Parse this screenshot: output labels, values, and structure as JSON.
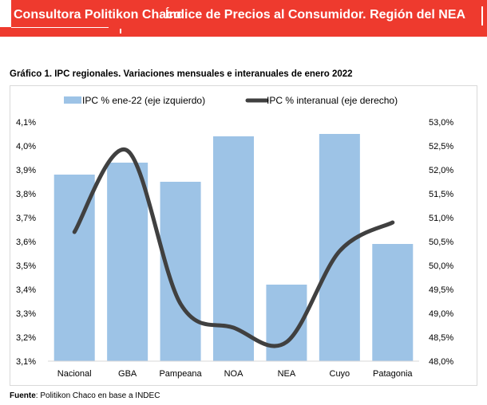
{
  "header": {
    "org": "Consultora Politikon Chaco",
    "title": "Índice de Precios al Consumidor. Región del NEA",
    "color": "#ee3a2e"
  },
  "figure_title": "Gráfico 1. IPC regionales. Variaciones mensuales e interanuales de enero 2022",
  "source": {
    "label": "Fuente",
    "text": ": Politikon Chaco en base a INDEC"
  },
  "chart_data": {
    "type": "bar+line",
    "title": "Gráfico 1. IPC regionales. Variaciones mensuales e interanuales de enero 2022",
    "categories": [
      "Nacional",
      "GBA",
      "Pampeana",
      "NOA",
      "NEA",
      "Cuyo",
      "Patagonia"
    ],
    "series": [
      {
        "name": "IPC % ene-22 (eje izquierdo)",
        "type": "bar",
        "axis": "left",
        "color": "#9dc3e6",
        "values": [
          3.88,
          3.93,
          3.85,
          4.04,
          3.42,
          4.05,
          3.59
        ]
      },
      {
        "name": "IPC % interanual (eje derecho)",
        "type": "line",
        "axis": "right",
        "color": "#404040",
        "values": [
          50.7,
          52.4,
          49.2,
          48.7,
          48.4,
          50.3,
          50.9
        ]
      }
    ],
    "left_axis": {
      "ylim": [
        3.1,
        4.1
      ],
      "ticks": [
        "3,1%",
        "3,2%",
        "3,3%",
        "3,4%",
        "3,5%",
        "3,6%",
        "3,7%",
        "3,8%",
        "3,9%",
        "4,0%",
        "4,1%"
      ]
    },
    "right_axis": {
      "ylim": [
        48.0,
        53.0
      ],
      "ticks": [
        "48,0%",
        "48,5%",
        "49,0%",
        "49,5%",
        "50,0%",
        "50,5%",
        "51,0%",
        "51,5%",
        "52,0%",
        "52,5%",
        "53,0%"
      ]
    },
    "legend": "top",
    "grid": false
  }
}
